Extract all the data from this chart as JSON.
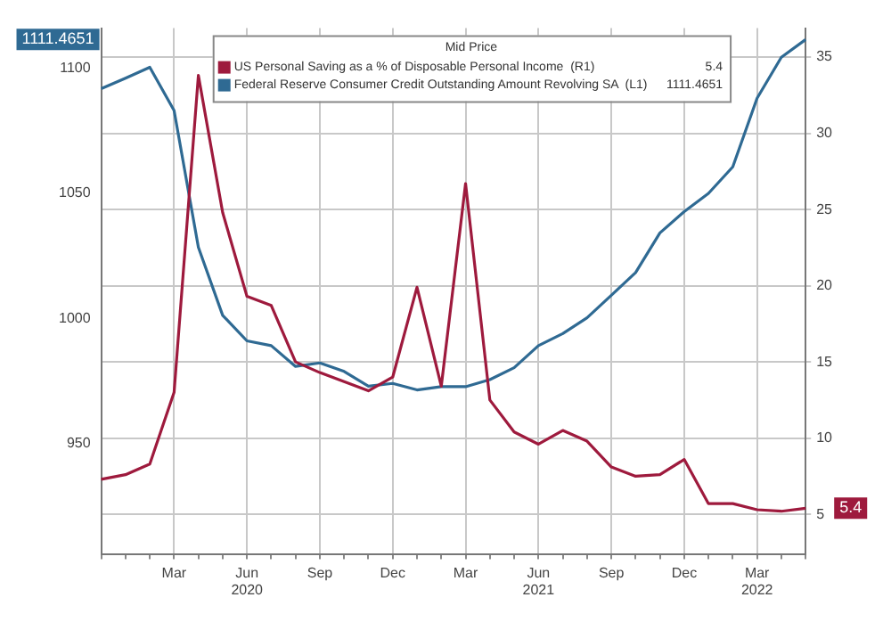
{
  "chart_data": {
    "type": "line",
    "legend_title": "Mid Price",
    "legend": "top",
    "categories": [
      null,
      null,
      null,
      "Mar",
      null,
      null,
      "Jun 2020",
      null,
      null,
      "Sep",
      null,
      null,
      "Dec",
      null,
      null,
      "Mar",
      null,
      null,
      "Jun 2021",
      null,
      null,
      "Sep",
      null,
      null,
      "Dec",
      null,
      null,
      "Mar 2022",
      null,
      null
    ],
    "series": [
      {
        "name": "US Personal Saving as a % of Disposable Personal Income  (R1)",
        "color": "#9e1a3d",
        "axis": "y2",
        "values": [
          7.3,
          7.6,
          8.3,
          13.0,
          33.8,
          24.8,
          19.3,
          18.7,
          15.0,
          14.3,
          13.7,
          13.1,
          14.0,
          19.9,
          13.4,
          26.7,
          12.5,
          10.4,
          9.6,
          10.5,
          9.8,
          8.1,
          7.5,
          7.6,
          8.6,
          5.7,
          5.7,
          5.3,
          5.2,
          5.4
        ]
      },
      {
        "name": "Federal Reserve Consumer Credit Outstanding Amount Revolving SA  (L1)",
        "color": "#2f6a93",
        "axis": "y",
        "values": [
          1091.8,
          1096,
          1100.4,
          1083.1,
          1028.5,
          1001.3,
          991.1,
          989.2,
          980.9,
          982.3,
          978.9,
          973,
          974.1,
          971.5,
          972.8,
          972.8,
          975.6,
          980.4,
          989.2,
          994.0,
          1000.3,
          1009.3,
          1018.4,
          1034.2,
          1042.7,
          1050,
          1060.6,
          1088,
          1104.4,
          1111.4651
        ]
      }
    ],
    "annotations": [
      "5.4",
      "1111.4651",
      "5.4",
      "1111.4651"
    ],
    "ylim": [
      906,
      1116
    ],
    "yticks": [
      950,
      1000,
      1050,
      1100
    ],
    "y2lim": [
      2.4,
      36.9
    ],
    "y2ticks": [
      5,
      10,
      15,
      20,
      25,
      30,
      35
    ],
    "grid": true
  }
}
